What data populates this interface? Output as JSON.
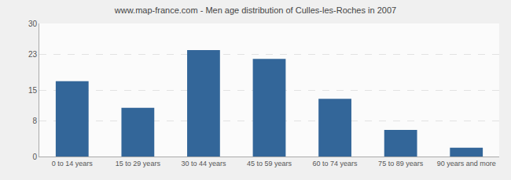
{
  "chart_data": {
    "type": "bar",
    "title": "www.map-france.com - Men age distribution of Culles-les-Roches in 2007",
    "categories": [
      "0 to 14 years",
      "15 to 29 years",
      "30 to 44 years",
      "45 to 59 years",
      "60 to 74 years",
      "75 to 89 years",
      "90 years and more"
    ],
    "values": [
      17,
      11,
      24,
      22,
      13,
      6,
      2
    ],
    "color": "#336699",
    "ylim": [
      0,
      30
    ],
    "yticks": [
      0,
      8,
      15,
      23,
      30
    ],
    "grid": true
  }
}
